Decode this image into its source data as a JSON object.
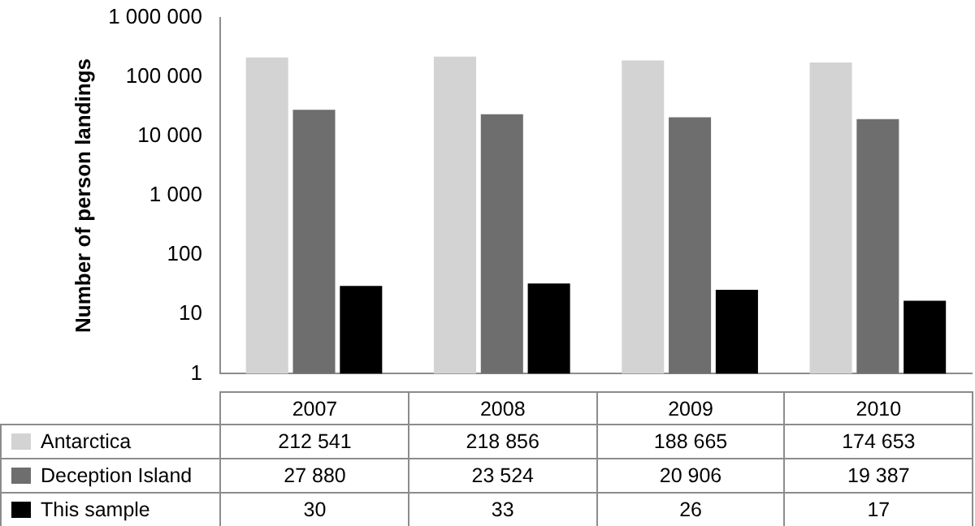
{
  "chart_data": {
    "type": "bar",
    "ylabel": "Number of person landings",
    "categories": [
      "2007",
      "2008",
      "2009",
      "2010"
    ],
    "series": [
      {
        "name": "Antarctica",
        "color": "#d3d3d3",
        "values": [
          212541,
          218856,
          188665,
          174653
        ],
        "value_labels": [
          "212 541",
          "218 856",
          "188 665",
          "174 653"
        ]
      },
      {
        "name": "Deception Island",
        "color": "#6e6e6e",
        "values": [
          27880,
          23524,
          20906,
          19387
        ],
        "value_labels": [
          "27 880",
          "23 524",
          "20 906",
          "19 387"
        ]
      },
      {
        "name": "This sample",
        "color": "#000000",
        "values": [
          30,
          33,
          26,
          17
        ],
        "value_labels": [
          "30",
          "33",
          "26",
          "17"
        ]
      }
    ],
    "log": "y",
    "ylim": [
      1,
      1000000
    ],
    "yticks": [
      1,
      10,
      100,
      {
        "value": 1000,
        "label": "1 000"
      },
      {
        "value": 10000,
        "label": "10 000"
      },
      {
        "value": 100000,
        "label": "100 000"
      },
      {
        "value": 1000000,
        "label": "1 000 000"
      }
    ],
    "grid": false,
    "legend": "bottom"
  }
}
